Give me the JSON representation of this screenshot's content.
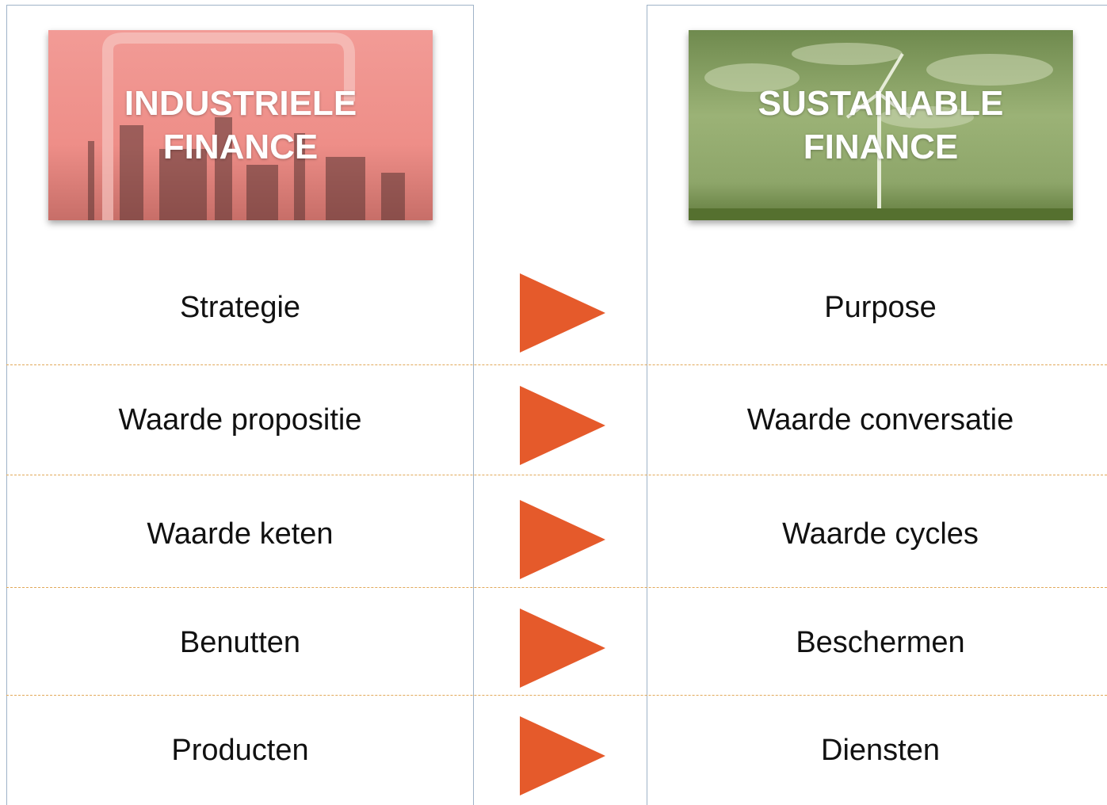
{
  "left": {
    "title": "INDUSTRIELE FINANCE",
    "items": [
      "Strategie",
      "Waarde propositie",
      "Waarde keten",
      "Benutten",
      "Producten"
    ]
  },
  "right": {
    "title": "SUSTAINABLE FINANCE",
    "items": [
      "Purpose",
      "Waarde conversatie",
      "Waarde cycles",
      "Beschermen",
      "Diensten"
    ]
  }
}
